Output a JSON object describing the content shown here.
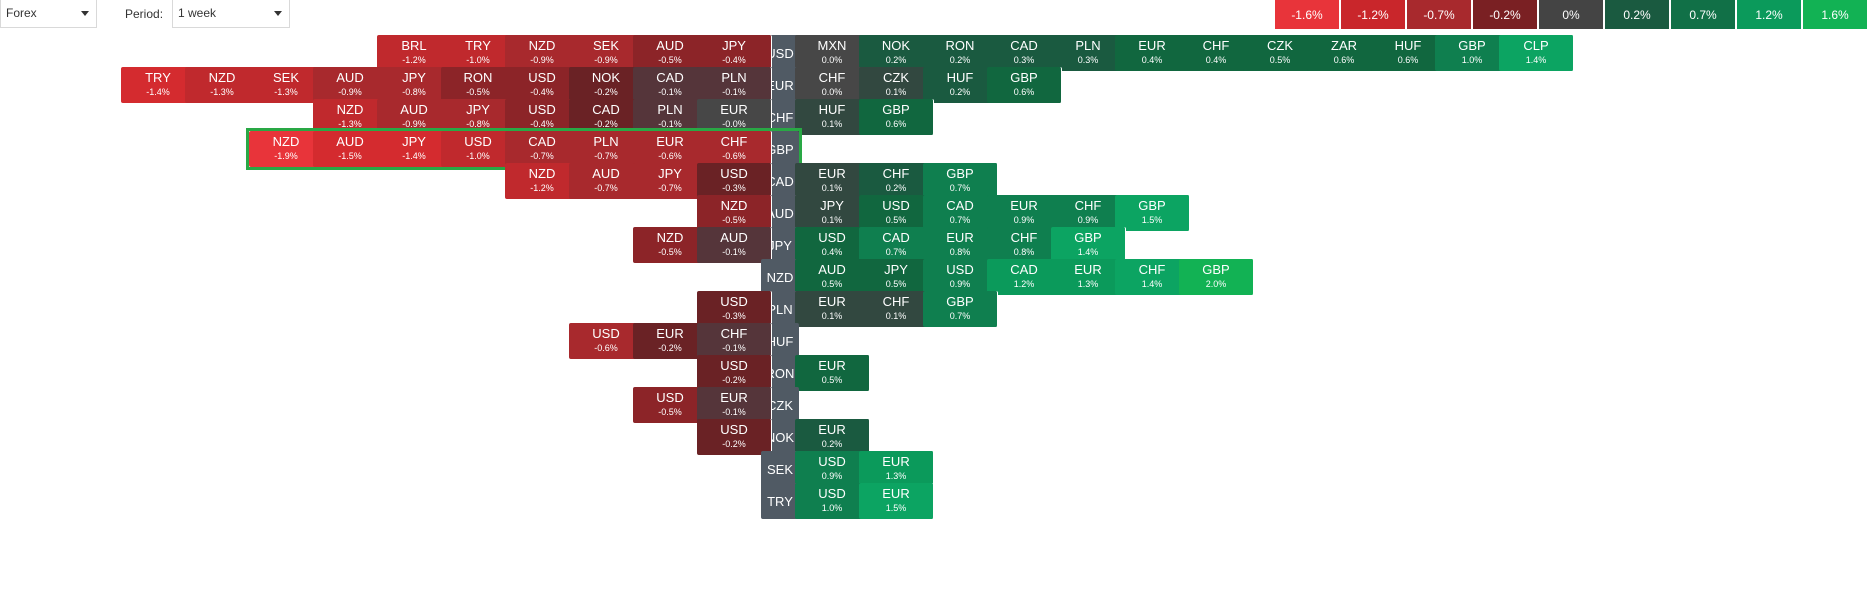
{
  "filters": {
    "market": "Forex",
    "period_label": "Period:",
    "period": "1 week"
  },
  "legend": [
    {
      "label": "-1.6%",
      "color": "#e8343a"
    },
    {
      "label": "-1.2%",
      "color": "#c9262b"
    },
    {
      "label": "-0.7%",
      "color": "#a8292d"
    },
    {
      "label": "-0.2%",
      "color": "#7a2023"
    },
    {
      "label": "0%",
      "color": "#444444"
    },
    {
      "label": "0.2%",
      "color": "#1a5a40"
    },
    {
      "label": "0.7%",
      "color": "#117047"
    },
    {
      "label": "1.2%",
      "color": "#0b9a5b"
    },
    {
      "label": "1.6%",
      "color": "#12b254"
    }
  ],
  "highlighted_row": "GBP",
  "rows": [
    {
      "base": "USD",
      "left": [
        [
          "BRL",
          "-1.2%"
        ],
        [
          "TRY",
          "-1.0%"
        ],
        [
          "NZD",
          "-0.9%"
        ],
        [
          "SEK",
          "-0.9%"
        ],
        [
          "AUD",
          "-0.5%"
        ],
        [
          "JPY",
          "-0.4%"
        ]
      ],
      "right": [
        [
          "MXN",
          "0.0%"
        ],
        [
          "NOK",
          "0.2%"
        ],
        [
          "RON",
          "0.2%"
        ],
        [
          "CAD",
          "0.3%"
        ],
        [
          "PLN",
          "0.3%"
        ],
        [
          "EUR",
          "0.4%"
        ],
        [
          "CHF",
          "0.4%"
        ],
        [
          "CZK",
          "0.5%"
        ],
        [
          "ZAR",
          "0.6%"
        ],
        [
          "HUF",
          "0.6%"
        ],
        [
          "GBP",
          "1.0%"
        ],
        [
          "CLP",
          "1.4%"
        ]
      ]
    },
    {
      "base": "EUR",
      "left": [
        [
          "TRY",
          "-1.4%"
        ],
        [
          "NZD",
          "-1.3%"
        ],
        [
          "SEK",
          "-1.3%"
        ],
        [
          "AUD",
          "-0.9%"
        ],
        [
          "JPY",
          "-0.8%"
        ],
        [
          "RON",
          "-0.5%"
        ],
        [
          "USD",
          "-0.4%"
        ],
        [
          "NOK",
          "-0.2%"
        ],
        [
          "CAD",
          "-0.1%"
        ],
        [
          "PLN",
          "-0.1%"
        ]
      ],
      "right": [
        [
          "CHF",
          "0.0%"
        ],
        [
          "CZK",
          "0.1%"
        ],
        [
          "HUF",
          "0.2%"
        ],
        [
          "GBP",
          "0.6%"
        ]
      ]
    },
    {
      "base": "CHF",
      "left": [
        [
          "NZD",
          "-1.3%"
        ],
        [
          "AUD",
          "-0.9%"
        ],
        [
          "JPY",
          "-0.8%"
        ],
        [
          "USD",
          "-0.4%"
        ],
        [
          "CAD",
          "-0.2%"
        ],
        [
          "PLN",
          "-0.1%"
        ],
        [
          "EUR",
          "-0.0%"
        ]
      ],
      "right": [
        [
          "HUF",
          "0.1%"
        ],
        [
          "GBP",
          "0.6%"
        ]
      ]
    },
    {
      "base": "GBP",
      "left": [
        [
          "NZD",
          "-1.9%"
        ],
        [
          "AUD",
          "-1.5%"
        ],
        [
          "JPY",
          "-1.4%"
        ],
        [
          "USD",
          "-1.0%"
        ],
        [
          "CAD",
          "-0.7%"
        ],
        [
          "PLN",
          "-0.7%"
        ],
        [
          "EUR",
          "-0.6%"
        ],
        [
          "CHF",
          "-0.6%"
        ]
      ],
      "right": []
    },
    {
      "base": "CAD",
      "left": [
        [
          "NZD",
          "-1.2%"
        ],
        [
          "AUD",
          "-0.7%"
        ],
        [
          "JPY",
          "-0.7%"
        ],
        [
          "USD",
          "-0.3%"
        ]
      ],
      "right": [
        [
          "EUR",
          "0.1%"
        ],
        [
          "CHF",
          "0.2%"
        ],
        [
          "GBP",
          "0.7%"
        ]
      ]
    },
    {
      "base": "AUD",
      "left": [
        [
          "NZD",
          "-0.5%"
        ]
      ],
      "right": [
        [
          "JPY",
          "0.1%"
        ],
        [
          "USD",
          "0.5%"
        ],
        [
          "CAD",
          "0.7%"
        ],
        [
          "EUR",
          "0.9%"
        ],
        [
          "CHF",
          "0.9%"
        ],
        [
          "GBP",
          "1.5%"
        ]
      ]
    },
    {
      "base": "JPY",
      "left": [
        [
          "NZD",
          "-0.5%"
        ],
        [
          "AUD",
          "-0.1%"
        ]
      ],
      "right": [
        [
          "USD",
          "0.4%"
        ],
        [
          "CAD",
          "0.7%"
        ],
        [
          "EUR",
          "0.8%"
        ],
        [
          "CHF",
          "0.8%"
        ],
        [
          "GBP",
          "1.4%"
        ]
      ]
    },
    {
      "base": "NZD",
      "left": [],
      "right": [
        [
          "AUD",
          "0.5%"
        ],
        [
          "JPY",
          "0.5%"
        ],
        [
          "USD",
          "0.9%"
        ],
        [
          "CAD",
          "1.2%"
        ],
        [
          "EUR",
          "1.3%"
        ],
        [
          "CHF",
          "1.4%"
        ],
        [
          "GBP",
          "2.0%"
        ]
      ]
    },
    {
      "base": "PLN",
      "left": [
        [
          "USD",
          "-0.3%"
        ]
      ],
      "right": [
        [
          "EUR",
          "0.1%"
        ],
        [
          "CHF",
          "0.1%"
        ],
        [
          "GBP",
          "0.7%"
        ]
      ]
    },
    {
      "base": "HUF",
      "left": [
        [
          "USD",
          "-0.6%"
        ],
        [
          "EUR",
          "-0.2%"
        ],
        [
          "CHF",
          "-0.1%"
        ]
      ],
      "right": []
    },
    {
      "base": "RON",
      "left": [
        [
          "USD",
          "-0.2%"
        ]
      ],
      "right": [
        [
          "EUR",
          "0.5%"
        ]
      ]
    },
    {
      "base": "CZK",
      "left": [
        [
          "USD",
          "-0.5%"
        ],
        [
          "EUR",
          "-0.1%"
        ]
      ],
      "right": []
    },
    {
      "base": "NOK",
      "left": [
        [
          "USD",
          "-0.2%"
        ]
      ],
      "right": [
        [
          "EUR",
          "0.2%"
        ]
      ]
    },
    {
      "base": "SEK",
      "left": [],
      "right": [
        [
          "USD",
          "0.9%"
        ],
        [
          "EUR",
          "1.3%"
        ]
      ]
    },
    {
      "base": "TRY",
      "left": [],
      "right": [
        [
          "USD",
          "1.0%"
        ],
        [
          "EUR",
          "1.5%"
        ]
      ]
    }
  ]
}
